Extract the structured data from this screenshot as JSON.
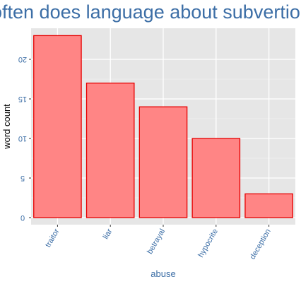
{
  "chart_data": {
    "type": "bar",
    "title": "often does language about subvertio",
    "xlabel": "abuse",
    "ylabel": "word count",
    "categories": [
      "traitor",
      "liar",
      "betrayal",
      "hypocrite",
      "deception"
    ],
    "values": [
      23,
      17,
      14,
      10,
      3
    ],
    "ylim": [
      0,
      24
    ],
    "yticks": [
      0,
      5,
      10,
      15,
      20
    ],
    "ytick_labels": [
      "0",
      "5",
      "10",
      "15",
      "20"
    ],
    "grid": true,
    "legend": "none",
    "colors": {
      "bar_fill": "#ff8585",
      "bar_stroke": "#e60000",
      "panel_bg": "#e6e6e6",
      "grid_major": "#ffffff",
      "text_accent": "#3c6ea6",
      "axis_text": "#000000"
    }
  }
}
